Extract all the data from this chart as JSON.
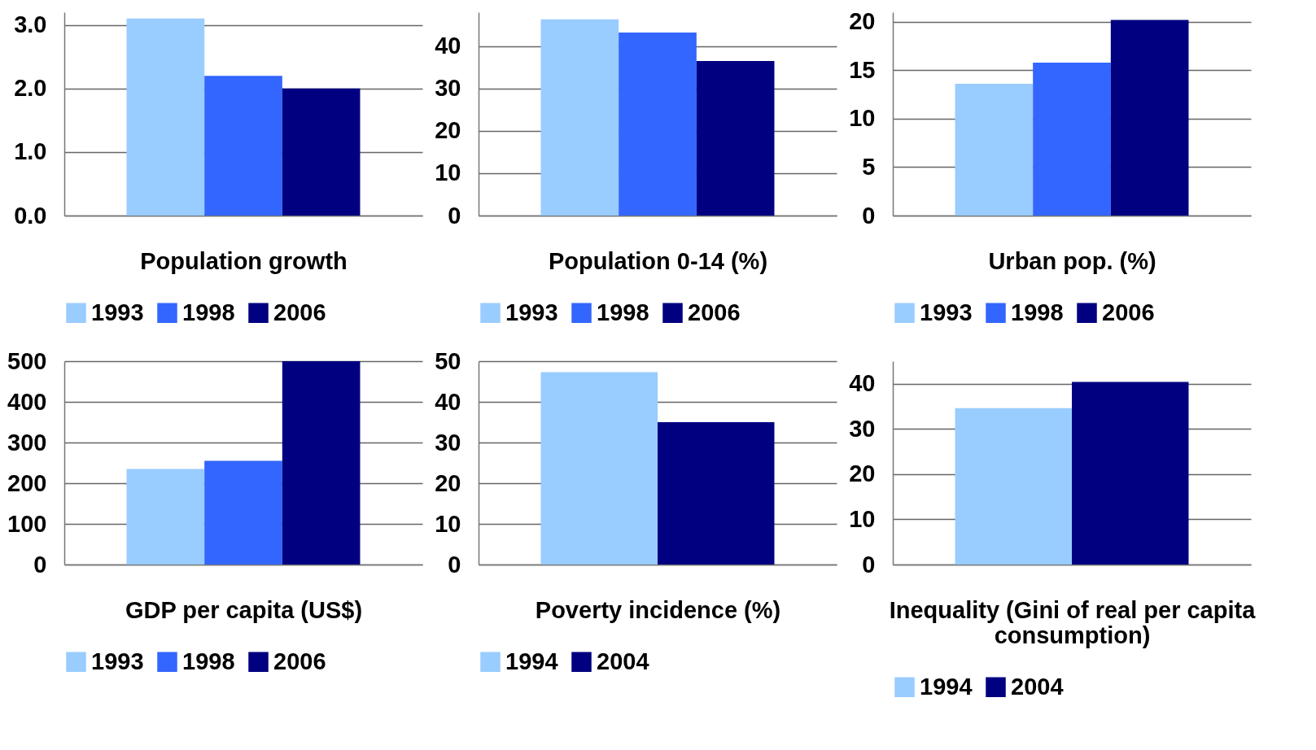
{
  "chart_data": [
    {
      "type": "bar",
      "xlabel": "Population growth",
      "categories": [
        null
      ],
      "series": [
        {
          "name": "1993",
          "color": "#99ccff",
          "values": [
            3.1
          ]
        },
        {
          "name": "1998",
          "color": "#3366ff",
          "values": [
            2.2
          ]
        },
        {
          "name": "2006",
          "color": "#000080",
          "values": [
            2.0
          ]
        }
      ],
      "ylim": [
        0,
        3.2
      ],
      "yticks": [
        {
          "value": 0,
          "label": "0.0"
        },
        {
          "value": 1,
          "label": "1.0"
        },
        {
          "value": 2,
          "label": "2.0"
        },
        {
          "value": 3,
          "label": "3.0"
        }
      ],
      "grid": "y",
      "legend": "bottom",
      "tick_labels": "y"
    },
    {
      "type": "bar",
      "xlabel": "Population 0-14 (%)",
      "categories": [
        null
      ],
      "series": [
        {
          "name": "1993",
          "color": "#99ccff",
          "values": [
            46.3
          ]
        },
        {
          "name": "1998",
          "color": "#3366ff",
          "values": [
            43.2
          ]
        },
        {
          "name": "2006",
          "color": "#000080",
          "values": [
            36.5
          ]
        }
      ],
      "ylim": [
        0,
        48
      ],
      "yticks": [
        0,
        10,
        20,
        30,
        40
      ],
      "grid": "y",
      "legend": "bottom",
      "tick_labels": "y"
    },
    {
      "type": "bar",
      "xlabel": "Urban pop. (%)",
      "categories": [
        null
      ],
      "series": [
        {
          "name": "1993",
          "color": "#99ccff",
          "values": [
            13.6
          ]
        },
        {
          "name": "1998",
          "color": "#3366ff",
          "values": [
            15.8
          ]
        },
        {
          "name": "2006",
          "color": "#000080",
          "values": [
            20.2
          ]
        }
      ],
      "ylim": [
        0,
        21
      ],
      "yticks": [
        0,
        5,
        10,
        15,
        20
      ],
      "grid": "y",
      "legend": "bottom",
      "tick_labels": "y"
    },
    {
      "type": "bar",
      "xlabel": "GDP per capita (US$)",
      "categories": [
        null
      ],
      "series": [
        {
          "name": "1993",
          "color": "#99ccff",
          "values": [
            235
          ]
        },
        {
          "name": "1998",
          "color": "#3366ff",
          "values": [
            255
          ]
        },
        {
          "name": "2006",
          "color": "#000080",
          "values": [
            500
          ]
        }
      ],
      "ylim": [
        0,
        500
      ],
      "yticks": [
        0,
        100,
        200,
        300,
        400,
        500
      ],
      "grid": "y",
      "legend": "bottom",
      "tick_labels": "y"
    },
    {
      "type": "bar",
      "xlabel": "Poverty incidence (%)",
      "categories": [
        null
      ],
      "series": [
        {
          "name": "1994",
          "color": "#99ccff",
          "values": [
            47.3
          ]
        },
        {
          "name": "2004",
          "color": "#000080",
          "values": [
            35.0
          ]
        }
      ],
      "ylim": [
        0,
        50
      ],
      "yticks": [
        0,
        10,
        20,
        30,
        40,
        50
      ],
      "grid": "y",
      "legend": "bottom",
      "tick_labels": "y"
    },
    {
      "type": "bar",
      "xlabel": "Inequality (Gini of real per capita consumption)",
      "categories": [
        null
      ],
      "series": [
        {
          "name": "1994",
          "color": "#99ccff",
          "values": [
            34.6
          ]
        },
        {
          "name": "2004",
          "color": "#000080",
          "values": [
            40.4
          ]
        }
      ],
      "ylim": [
        0,
        45
      ],
      "yticks": [
        0,
        10,
        20,
        30,
        40
      ],
      "grid": "y",
      "legend": "bottom",
      "tick_labels": "y"
    }
  ]
}
